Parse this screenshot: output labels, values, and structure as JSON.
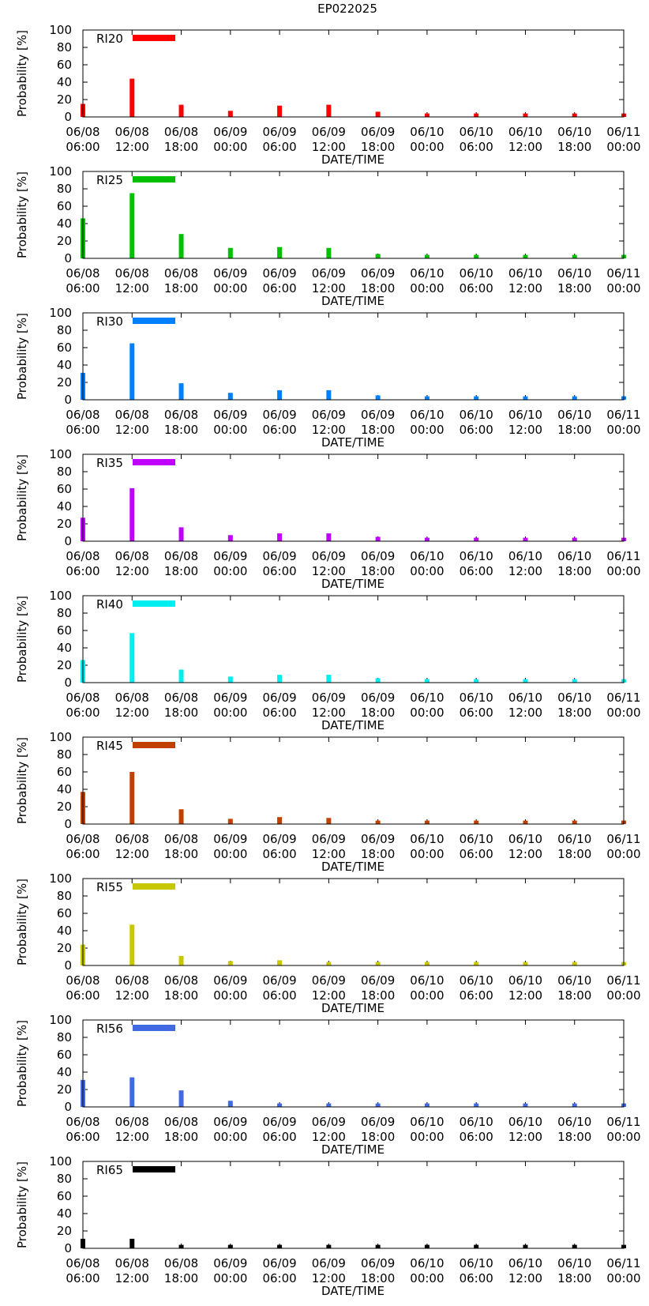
{
  "title": "EP022025",
  "chart_data": [
    {
      "type": "bar",
      "legend": "RI20",
      "color": "#ff0000",
      "xlabel": "DATE/TIME",
      "ylabel": "Probability [%]",
      "ylim": [
        0,
        100
      ],
      "yticks": [
        0,
        20,
        40,
        60,
        80,
        100
      ],
      "grid": false,
      "legend_position": "top-left",
      "x_ticks": [
        [
          "06/08",
          "06:00"
        ],
        [
          "06/08",
          "12:00"
        ],
        [
          "06/08",
          "18:00"
        ],
        [
          "06/09",
          "00:00"
        ],
        [
          "06/09",
          "06:00"
        ],
        [
          "06/09",
          "12:00"
        ],
        [
          "06/09",
          "18:00"
        ],
        [
          "06/10",
          "00:00"
        ],
        [
          "06/10",
          "06:00"
        ],
        [
          "06/10",
          "12:00"
        ],
        [
          "06/10",
          "18:00"
        ],
        [
          "06/11",
          "00:00"
        ]
      ],
      "values": [
        15,
        44,
        14,
        7,
        13,
        14,
        6,
        4,
        4,
        4,
        4,
        4
      ]
    },
    {
      "type": "bar",
      "legend": "RI25",
      "color": "#00c000",
      "xlabel": "DATE/TIME",
      "ylabel": "Probability [%]",
      "ylim": [
        0,
        100
      ],
      "yticks": [
        0,
        20,
        40,
        60,
        80,
        100
      ],
      "grid": false,
      "legend_position": "top-left",
      "x_ticks": [
        [
          "06/08",
          "06:00"
        ],
        [
          "06/08",
          "12:00"
        ],
        [
          "06/08",
          "18:00"
        ],
        [
          "06/09",
          "00:00"
        ],
        [
          "06/09",
          "06:00"
        ],
        [
          "06/09",
          "12:00"
        ],
        [
          "06/09",
          "18:00"
        ],
        [
          "06/10",
          "00:00"
        ],
        [
          "06/10",
          "06:00"
        ],
        [
          "06/10",
          "12:00"
        ],
        [
          "06/10",
          "18:00"
        ],
        [
          "06/11",
          "00:00"
        ]
      ],
      "values": [
        46,
        75,
        28,
        12,
        13,
        12,
        5,
        4,
        4,
        4,
        4,
        4
      ]
    },
    {
      "type": "bar",
      "legend": "RI30",
      "color": "#0080ff",
      "xlabel": "DATE/TIME",
      "ylabel": "Probability [%]",
      "ylim": [
        0,
        100
      ],
      "yticks": [
        0,
        20,
        40,
        60,
        80,
        100
      ],
      "grid": false,
      "legend_position": "top-left",
      "x_ticks": [
        [
          "06/08",
          "06:00"
        ],
        [
          "06/08",
          "12:00"
        ],
        [
          "06/08",
          "18:00"
        ],
        [
          "06/09",
          "00:00"
        ],
        [
          "06/09",
          "06:00"
        ],
        [
          "06/09",
          "12:00"
        ],
        [
          "06/09",
          "18:00"
        ],
        [
          "06/10",
          "00:00"
        ],
        [
          "06/10",
          "06:00"
        ],
        [
          "06/10",
          "12:00"
        ],
        [
          "06/10",
          "18:00"
        ],
        [
          "06/11",
          "00:00"
        ]
      ],
      "values": [
        31,
        65,
        19,
        8,
        11,
        11,
        5,
        4,
        4,
        4,
        4,
        4
      ]
    },
    {
      "type": "bar",
      "legend": "RI35",
      "color": "#c000ff",
      "xlabel": "DATE/TIME",
      "ylabel": "Probability [%]",
      "ylim": [
        0,
        100
      ],
      "yticks": [
        0,
        20,
        40,
        60,
        80,
        100
      ],
      "grid": false,
      "legend_position": "top-left",
      "x_ticks": [
        [
          "06/08",
          "06:00"
        ],
        [
          "06/08",
          "12:00"
        ],
        [
          "06/08",
          "18:00"
        ],
        [
          "06/09",
          "00:00"
        ],
        [
          "06/09",
          "06:00"
        ],
        [
          "06/09",
          "12:00"
        ],
        [
          "06/09",
          "18:00"
        ],
        [
          "06/10",
          "00:00"
        ],
        [
          "06/10",
          "06:00"
        ],
        [
          "06/10",
          "12:00"
        ],
        [
          "06/10",
          "18:00"
        ],
        [
          "06/11",
          "00:00"
        ]
      ],
      "values": [
        27,
        61,
        16,
        7,
        9,
        9,
        5,
        4,
        4,
        4,
        4,
        4
      ]
    },
    {
      "type": "bar",
      "legend": "RI40",
      "color": "#00eeee",
      "xlabel": "DATE/TIME",
      "ylabel": "Probability [%]",
      "ylim": [
        0,
        100
      ],
      "yticks": [
        0,
        20,
        40,
        60,
        80,
        100
      ],
      "grid": false,
      "legend_position": "top-left",
      "x_ticks": [
        [
          "06/08",
          "06:00"
        ],
        [
          "06/08",
          "12:00"
        ],
        [
          "06/08",
          "18:00"
        ],
        [
          "06/09",
          "00:00"
        ],
        [
          "06/09",
          "06:00"
        ],
        [
          "06/09",
          "12:00"
        ],
        [
          "06/09",
          "18:00"
        ],
        [
          "06/10",
          "00:00"
        ],
        [
          "06/10",
          "06:00"
        ],
        [
          "06/10",
          "12:00"
        ],
        [
          "06/10",
          "18:00"
        ],
        [
          "06/11",
          "00:00"
        ]
      ],
      "values": [
        26,
        57,
        15,
        7,
        9,
        9,
        5,
        4,
        4,
        4,
        4,
        4
      ]
    },
    {
      "type": "bar",
      "legend": "RI45",
      "color": "#c04000",
      "xlabel": "DATE/TIME",
      "ylabel": "Probability [%]",
      "ylim": [
        0,
        100
      ],
      "yticks": [
        0,
        20,
        40,
        60,
        80,
        100
      ],
      "grid": false,
      "legend_position": "top-left",
      "x_ticks": [
        [
          "06/08",
          "06:00"
        ],
        [
          "06/08",
          "12:00"
        ],
        [
          "06/08",
          "18:00"
        ],
        [
          "06/09",
          "00:00"
        ],
        [
          "06/09",
          "06:00"
        ],
        [
          "06/09",
          "12:00"
        ],
        [
          "06/09",
          "18:00"
        ],
        [
          "06/10",
          "00:00"
        ],
        [
          "06/10",
          "06:00"
        ],
        [
          "06/10",
          "12:00"
        ],
        [
          "06/10",
          "18:00"
        ],
        [
          "06/11",
          "00:00"
        ]
      ],
      "values": [
        37,
        60,
        17,
        6,
        8,
        7,
        4,
        4,
        4,
        4,
        4,
        4
      ]
    },
    {
      "type": "bar",
      "legend": "RI55",
      "color": "#c8c800",
      "xlabel": "DATE/TIME",
      "ylabel": "Probability [%]",
      "ylim": [
        0,
        100
      ],
      "yticks": [
        0,
        20,
        40,
        60,
        80,
        100
      ],
      "grid": false,
      "legend_position": "top-left",
      "x_ticks": [
        [
          "06/08",
          "06:00"
        ],
        [
          "06/08",
          "12:00"
        ],
        [
          "06/08",
          "18:00"
        ],
        [
          "06/09",
          "00:00"
        ],
        [
          "06/09",
          "06:00"
        ],
        [
          "06/09",
          "12:00"
        ],
        [
          "06/09",
          "18:00"
        ],
        [
          "06/10",
          "00:00"
        ],
        [
          "06/10",
          "06:00"
        ],
        [
          "06/10",
          "12:00"
        ],
        [
          "06/10",
          "18:00"
        ],
        [
          "06/11",
          "00:00"
        ]
      ],
      "values": [
        24,
        47,
        11,
        5,
        6,
        4,
        4,
        4,
        4,
        4,
        4,
        4
      ]
    },
    {
      "type": "bar",
      "legend": "RI56",
      "color": "#4169e1",
      "xlabel": "DATE/TIME",
      "ylabel": "Probability [%]",
      "ylim": [
        0,
        100
      ],
      "yticks": [
        0,
        20,
        40,
        60,
        80,
        100
      ],
      "grid": false,
      "legend_position": "top-left",
      "x_ticks": [
        [
          "06/08",
          "06:00"
        ],
        [
          "06/08",
          "12:00"
        ],
        [
          "06/08",
          "18:00"
        ],
        [
          "06/09",
          "00:00"
        ],
        [
          "06/09",
          "06:00"
        ],
        [
          "06/09",
          "12:00"
        ],
        [
          "06/09",
          "18:00"
        ],
        [
          "06/10",
          "00:00"
        ],
        [
          "06/10",
          "06:00"
        ],
        [
          "06/10",
          "12:00"
        ],
        [
          "06/10",
          "18:00"
        ],
        [
          "06/11",
          "00:00"
        ]
      ],
      "values": [
        31,
        34,
        19,
        7,
        4,
        4,
        4,
        4,
        4,
        4,
        4,
        4
      ]
    },
    {
      "type": "bar",
      "legend": "RI65",
      "color": "#000000",
      "xlabel": "DATE/TIME",
      "ylabel": "Probability [%]",
      "ylim": [
        0,
        100
      ],
      "yticks": [
        0,
        20,
        40,
        60,
        80,
        100
      ],
      "grid": false,
      "legend_position": "top-left",
      "x_ticks": [
        [
          "06/08",
          "06:00"
        ],
        [
          "06/08",
          "12:00"
        ],
        [
          "06/08",
          "18:00"
        ],
        [
          "06/09",
          "00:00"
        ],
        [
          "06/09",
          "06:00"
        ],
        [
          "06/09",
          "12:00"
        ],
        [
          "06/09",
          "18:00"
        ],
        [
          "06/10",
          "00:00"
        ],
        [
          "06/10",
          "06:00"
        ],
        [
          "06/10",
          "12:00"
        ],
        [
          "06/10",
          "18:00"
        ],
        [
          "06/11",
          "00:00"
        ]
      ],
      "values": [
        11,
        11,
        4,
        4,
        4,
        4,
        4,
        4,
        4,
        4,
        4,
        4
      ]
    }
  ]
}
